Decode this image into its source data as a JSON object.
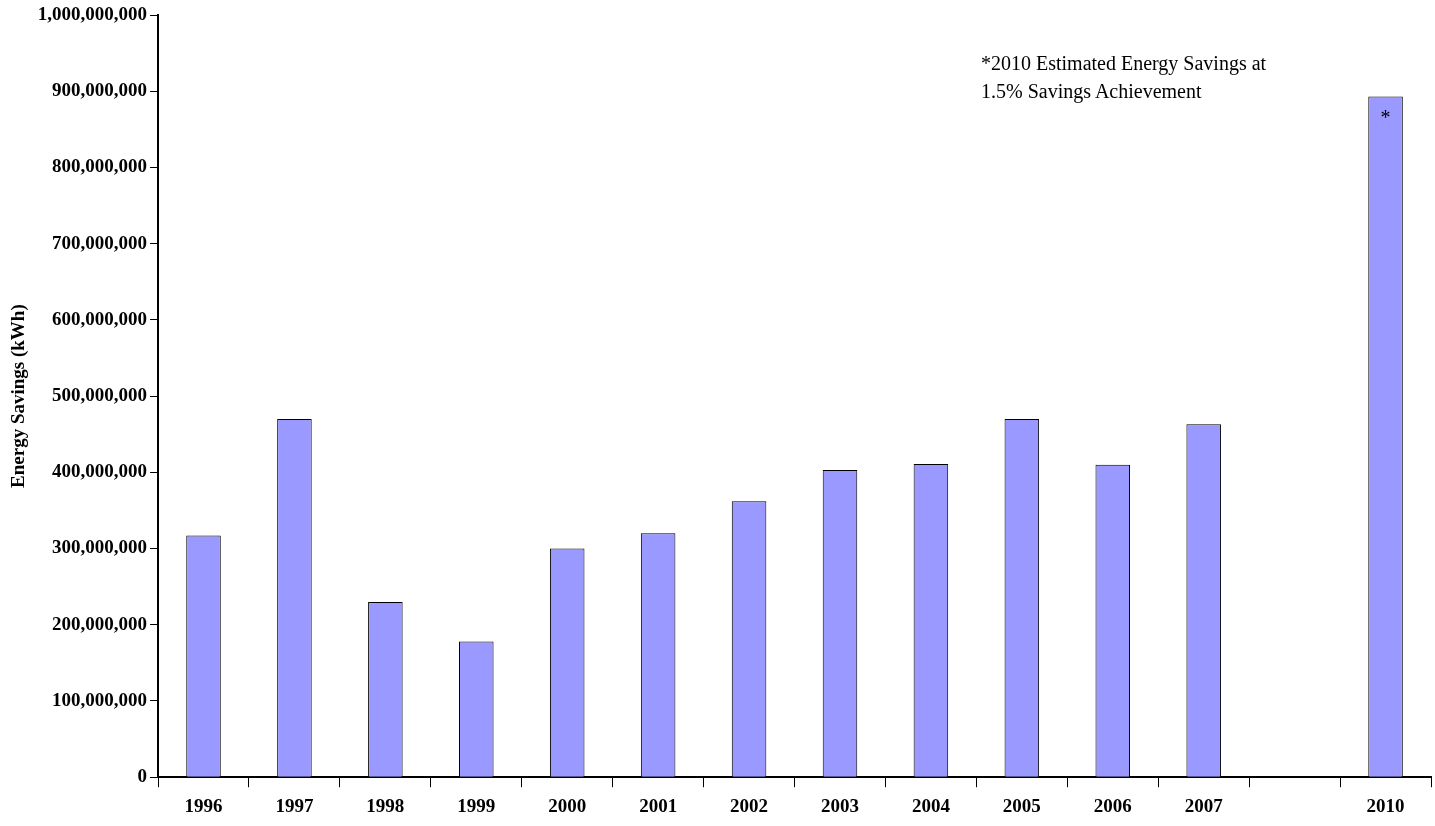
{
  "chart_data": {
    "type": "bar",
    "ylabel": "Energy Savings (kWh)",
    "categories": [
      "1996",
      "1997",
      "1998",
      "1999",
      "2000",
      "2001",
      "2002",
      "2003",
      "2004",
      "2005",
      "2006",
      "2007",
      null,
      "2010"
    ],
    "values": [
      317000000,
      470000000,
      230000000,
      178000000,
      300000000,
      320000000,
      362000000,
      403000000,
      411000000,
      470000000,
      410000000,
      463000000,
      null,
      893000000
    ],
    "color": "#9999ff",
    "ylim": [
      0,
      1000000000
    ],
    "yticks": [
      0,
      {
        "value": 100000000,
        "label": "100,000,000"
      },
      {
        "value": 200000000,
        "label": "200,000,000"
      },
      {
        "value": 300000000,
        "label": "300,000,000"
      },
      {
        "value": 400000000,
        "label": "400,000,000"
      },
      {
        "value": 500000000,
        "label": "500,000,000"
      },
      {
        "value": 600000000,
        "label": "600,000,000"
      },
      {
        "value": 700000000,
        "label": "700,000,000"
      },
      {
        "value": 800000000,
        "label": "800,000,000"
      },
      {
        "value": 900000000,
        "label": "900,000,000"
      },
      {
        "value": 1000000000,
        "label": "1,000,000,000"
      }
    ],
    "grid": false,
    "legend": false,
    "annotations": [
      "*2010 Estimated Energy Savings at 1.5% Savings Achievement",
      {
        "text": "*",
        "x": "2010",
        "y": 893000000
      }
    ]
  }
}
